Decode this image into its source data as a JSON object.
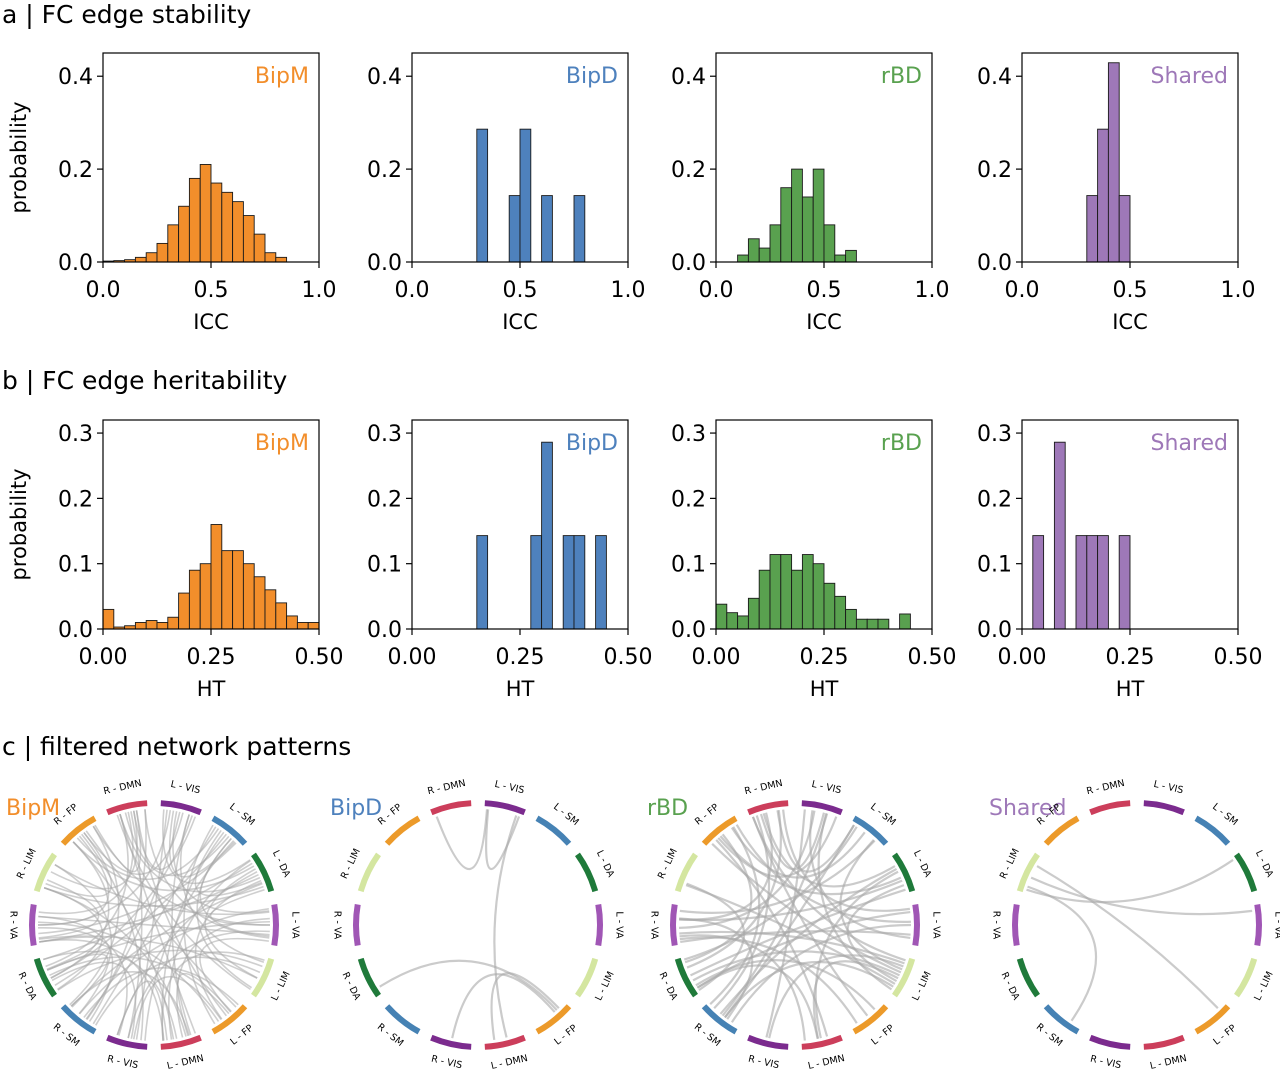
{
  "sections": {
    "a": "a | FC edge stability",
    "b": "b | FC edge heritability",
    "c": "c | filtered network patterns"
  },
  "colors": {
    "BipM": "#f28e2b",
    "BipD": "#4e81bd",
    "rBD": "#59a14f",
    "Shared": "#9e78b8",
    "chord": "#a8a8a8"
  },
  "chart_data": [
    {
      "type": "bar",
      "title": "BipM",
      "xlabel": "ICC",
      "ylabel": "probability",
      "xlim": [
        0.0,
        1.0
      ],
      "ylim": [
        0,
        0.45
      ],
      "xticks": [
        "0.0",
        "0.5",
        "1.0"
      ],
      "yticks": [
        "0.0",
        "0.2",
        "0.4"
      ],
      "bin_width": 0.05,
      "bins": [
        [
          0.0,
          0.002
        ],
        [
          0.05,
          0.003
        ],
        [
          0.1,
          0.005
        ],
        [
          0.15,
          0.01
        ],
        [
          0.2,
          0.02
        ],
        [
          0.25,
          0.04
        ],
        [
          0.3,
          0.08
        ],
        [
          0.35,
          0.12
        ],
        [
          0.4,
          0.18
        ],
        [
          0.45,
          0.21
        ],
        [
          0.5,
          0.17
        ],
        [
          0.55,
          0.15
        ],
        [
          0.6,
          0.13
        ],
        [
          0.65,
          0.1
        ],
        [
          0.7,
          0.06
        ],
        [
          0.75,
          0.02
        ],
        [
          0.8,
          0.01
        ]
      ]
    },
    {
      "type": "bar",
      "title": "BipD",
      "xlabel": "ICC",
      "ylabel": "",
      "xlim": [
        0.0,
        1.0
      ],
      "ylim": [
        0,
        0.45
      ],
      "xticks": [
        "0.0",
        "0.5",
        "1.0"
      ],
      "yticks": [
        "0.0",
        "0.2",
        "0.4"
      ],
      "bin_width": 0.05,
      "bins": [
        [
          0.3,
          0.286
        ],
        [
          0.45,
          0.143
        ],
        [
          0.5,
          0.286
        ],
        [
          0.6,
          0.143
        ],
        [
          0.75,
          0.143
        ]
      ]
    },
    {
      "type": "bar",
      "title": "rBD",
      "xlabel": "ICC",
      "ylabel": "",
      "xlim": [
        0.0,
        1.0
      ],
      "ylim": [
        0,
        0.45
      ],
      "xticks": [
        "0.0",
        "0.5",
        "1.0"
      ],
      "yticks": [
        "0.0",
        "0.2",
        "0.4"
      ],
      "bin_width": 0.05,
      "bins": [
        [
          0.1,
          0.015
        ],
        [
          0.15,
          0.05
        ],
        [
          0.2,
          0.03
        ],
        [
          0.25,
          0.08
        ],
        [
          0.3,
          0.16
        ],
        [
          0.35,
          0.2
        ],
        [
          0.4,
          0.14
        ],
        [
          0.45,
          0.2
        ],
        [
          0.5,
          0.08
        ],
        [
          0.55,
          0.015
        ],
        [
          0.6,
          0.025
        ]
      ]
    },
    {
      "type": "bar",
      "title": "Shared",
      "xlabel": "ICC",
      "ylabel": "",
      "xlim": [
        0.0,
        1.0
      ],
      "ylim": [
        0,
        0.45
      ],
      "xticks": [
        "0.0",
        "0.5",
        "1.0"
      ],
      "yticks": [
        "0.0",
        "0.2",
        "0.4"
      ],
      "bin_width": 0.05,
      "bins": [
        [
          0.3,
          0.143
        ],
        [
          0.35,
          0.286
        ],
        [
          0.4,
          0.429
        ],
        [
          0.45,
          0.143
        ]
      ]
    },
    {
      "type": "bar",
      "title": "BipM",
      "xlabel": "HT",
      "ylabel": "probability",
      "xlim": [
        0.0,
        0.5
      ],
      "ylim": [
        0,
        0.32
      ],
      "xticks": [
        "0.00",
        "0.25",
        "0.50"
      ],
      "yticks": [
        "0.0",
        "0.1",
        "0.2",
        "0.3"
      ],
      "bin_width": 0.025,
      "bins": [
        [
          0.0,
          0.03
        ],
        [
          0.025,
          0.003
        ],
        [
          0.05,
          0.005
        ],
        [
          0.075,
          0.01
        ],
        [
          0.1,
          0.013
        ],
        [
          0.125,
          0.01
        ],
        [
          0.15,
          0.018
        ],
        [
          0.175,
          0.055
        ],
        [
          0.2,
          0.09
        ],
        [
          0.225,
          0.1
        ],
        [
          0.25,
          0.16
        ],
        [
          0.275,
          0.12
        ],
        [
          0.3,
          0.12
        ],
        [
          0.325,
          0.1
        ],
        [
          0.35,
          0.08
        ],
        [
          0.375,
          0.06
        ],
        [
          0.4,
          0.04
        ],
        [
          0.425,
          0.02
        ],
        [
          0.45,
          0.01
        ],
        [
          0.475,
          0.01
        ]
      ]
    },
    {
      "type": "bar",
      "title": "BipD",
      "xlabel": "HT",
      "ylabel": "",
      "xlim": [
        0.0,
        0.5
      ],
      "ylim": [
        0,
        0.32
      ],
      "xticks": [
        "0.00",
        "0.25",
        "0.50"
      ],
      "yticks": [
        "0.0",
        "0.1",
        "0.2",
        "0.3"
      ],
      "bin_width": 0.025,
      "bins": [
        [
          0.15,
          0.143
        ],
        [
          0.275,
          0.143
        ],
        [
          0.3,
          0.286
        ],
        [
          0.35,
          0.143
        ],
        [
          0.375,
          0.143
        ],
        [
          0.425,
          0.143
        ]
      ]
    },
    {
      "type": "bar",
      "title": "rBD",
      "xlabel": "HT",
      "ylabel": "",
      "xlim": [
        0.0,
        0.5
      ],
      "ylim": [
        0,
        0.32
      ],
      "xticks": [
        "0.00",
        "0.25",
        "0.50"
      ],
      "yticks": [
        "0.0",
        "0.1",
        "0.2",
        "0.3"
      ],
      "bin_width": 0.025,
      "bins": [
        [
          0.0,
          0.038
        ],
        [
          0.025,
          0.025
        ],
        [
          0.05,
          0.02
        ],
        [
          0.075,
          0.047
        ],
        [
          0.1,
          0.09
        ],
        [
          0.125,
          0.114
        ],
        [
          0.15,
          0.114
        ],
        [
          0.175,
          0.09
        ],
        [
          0.2,
          0.114
        ],
        [
          0.225,
          0.1
        ],
        [
          0.25,
          0.07
        ],
        [
          0.275,
          0.05
        ],
        [
          0.3,
          0.03
        ],
        [
          0.325,
          0.015
        ],
        [
          0.35,
          0.015
        ],
        [
          0.375,
          0.015
        ],
        [
          0.425,
          0.023
        ]
      ]
    },
    {
      "type": "bar",
      "title": "Shared",
      "xlabel": "HT",
      "ylabel": "",
      "xlim": [
        0.0,
        0.5
      ],
      "ylim": [
        0,
        0.32
      ],
      "xticks": [
        "0.00",
        "0.25",
        "0.50"
      ],
      "yticks": [
        "0.0",
        "0.1",
        "0.2",
        "0.3"
      ],
      "bin_width": 0.025,
      "bins": [
        [
          0.025,
          0.143
        ],
        [
          0.075,
          0.286
        ],
        [
          0.125,
          0.143
        ],
        [
          0.15,
          0.143
        ],
        [
          0.175,
          0.143
        ],
        [
          0.225,
          0.143
        ]
      ]
    }
  ],
  "chords": {
    "networks": [
      {
        "label": "L - VIS",
        "color": "#7b2b8e"
      },
      {
        "label": "L - SM",
        "color": "#4682b4"
      },
      {
        "label": "L - DA",
        "color": "#1f7a3a"
      },
      {
        "label": "L - VA",
        "color": "#a056b5"
      },
      {
        "label": "L - LIM",
        "color": "#d4e6a0"
      },
      {
        "label": "L - FP",
        "color": "#ec9a2a"
      },
      {
        "label": "L - DMN",
        "color": "#cc3e5b"
      },
      {
        "label": "R - VIS",
        "color": "#7b2b8e"
      },
      {
        "label": "R - SM",
        "color": "#4682b4"
      },
      {
        "label": "R - DA",
        "color": "#1f7a3a"
      },
      {
        "label": "R - VA",
        "color": "#a056b5"
      },
      {
        "label": "R - LIM",
        "color": "#d4e6a0"
      },
      {
        "label": "R - FP",
        "color": "#ec9a2a"
      },
      {
        "label": "R - DMN",
        "color": "#cc3e5b"
      }
    ],
    "panels": [
      {
        "title": "BipM",
        "edges": [
          [
            0,
            2
          ],
          [
            0,
            3
          ],
          [
            0,
            6
          ],
          [
            0,
            7
          ],
          [
            0,
            8
          ],
          [
            0,
            9
          ],
          [
            0,
            10
          ],
          [
            0,
            12
          ],
          [
            0,
            13
          ],
          [
            1,
            2
          ],
          [
            1,
            3
          ],
          [
            1,
            5
          ],
          [
            1,
            6
          ],
          [
            1,
            7
          ],
          [
            1,
            8
          ],
          [
            1,
            9
          ],
          [
            1,
            10
          ],
          [
            1,
            12
          ],
          [
            1,
            13
          ],
          [
            2,
            3
          ],
          [
            2,
            4
          ],
          [
            2,
            5
          ],
          [
            2,
            6
          ],
          [
            2,
            7
          ],
          [
            2,
            8
          ],
          [
            2,
            9
          ],
          [
            2,
            10
          ],
          [
            2,
            11
          ],
          [
            2,
            12
          ],
          [
            2,
            13
          ],
          [
            3,
            5
          ],
          [
            3,
            6
          ],
          [
            3,
            7
          ],
          [
            3,
            8
          ],
          [
            3,
            9
          ],
          [
            3,
            10
          ],
          [
            3,
            11
          ],
          [
            3,
            12
          ],
          [
            3,
            13
          ],
          [
            4,
            9
          ],
          [
            4,
            10
          ],
          [
            4,
            13
          ],
          [
            5,
            6
          ],
          [
            5,
            7
          ],
          [
            5,
            8
          ],
          [
            5,
            9
          ],
          [
            5,
            10
          ],
          [
            5,
            12
          ],
          [
            5,
            13
          ],
          [
            6,
            7
          ],
          [
            6,
            8
          ],
          [
            6,
            9
          ],
          [
            6,
            10
          ],
          [
            6,
            11
          ],
          [
            6,
            12
          ],
          [
            6,
            13
          ],
          [
            7,
            9
          ],
          [
            7,
            10
          ],
          [
            7,
            12
          ],
          [
            7,
            13
          ],
          [
            8,
            9
          ],
          [
            8,
            10
          ],
          [
            8,
            11
          ],
          [
            8,
            12
          ],
          [
            8,
            13
          ],
          [
            9,
            10
          ],
          [
            9,
            11
          ],
          [
            9,
            12
          ],
          [
            9,
            13
          ],
          [
            10,
            11
          ],
          [
            10,
            12
          ],
          [
            10,
            13
          ],
          [
            11,
            12
          ],
          [
            11,
            13
          ],
          [
            12,
            13
          ],
          [
            0,
            1
          ],
          [
            1,
            4
          ],
          [
            4,
            6
          ],
          [
            4,
            8
          ],
          [
            0,
            4
          ]
        ]
      },
      {
        "title": "BipD",
        "edges": [
          [
            13,
            0
          ],
          [
            0,
            0
          ],
          [
            6,
            5
          ],
          [
            9,
            5
          ],
          [
            7,
            5
          ],
          [
            0,
            6
          ]
        ]
      },
      {
        "title": "rBD",
        "edges": [
          [
            4,
            13
          ],
          [
            4,
            12
          ],
          [
            4,
            11
          ],
          [
            4,
            10
          ],
          [
            4,
            9
          ],
          [
            4,
            8
          ],
          [
            4,
            7
          ],
          [
            4,
            6
          ],
          [
            4,
            0
          ],
          [
            4,
            1
          ],
          [
            4,
            2
          ],
          [
            3,
            13
          ],
          [
            3,
            12
          ],
          [
            3,
            10
          ],
          [
            3,
            9
          ],
          [
            3,
            8
          ],
          [
            3,
            0
          ],
          [
            2,
            13
          ],
          [
            2,
            12
          ],
          [
            2,
            9
          ],
          [
            2,
            8
          ],
          [
            2,
            10
          ],
          [
            1,
            13
          ],
          [
            1,
            12
          ],
          [
            1,
            10
          ],
          [
            1,
            9
          ],
          [
            5,
            13
          ],
          [
            5,
            10
          ],
          [
            5,
            9
          ],
          [
            0,
            13
          ],
          [
            0,
            12
          ],
          [
            0,
            10
          ],
          [
            0,
            8
          ],
          [
            0,
            7
          ],
          [
            13,
            10
          ],
          [
            13,
            9
          ],
          [
            13,
            8
          ],
          [
            12,
            9
          ],
          [
            12,
            8
          ],
          [
            11,
            9
          ],
          [
            6,
            9
          ],
          [
            6,
            10
          ],
          [
            6,
            12
          ],
          [
            10,
            8
          ],
          [
            1,
            8
          ],
          [
            2,
            6
          ]
        ]
      },
      {
        "title": "Shared",
        "edges": [
          [
            11,
            2
          ],
          [
            11,
            3
          ],
          [
            11,
            5
          ],
          [
            11,
            8
          ]
        ]
      }
    ]
  }
}
